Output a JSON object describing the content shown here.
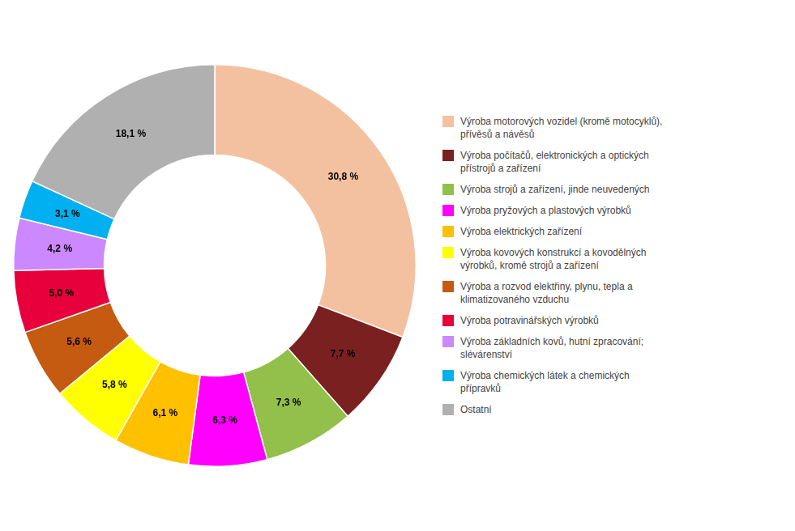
{
  "chart_data": {
    "type": "doughnut",
    "categories": [
      "Výroba motorových vozidel (kromě motocyklů),\npřívěsů a návěsů",
      "Výroba počítačů, elektronických a optických\npřístrojů a zařízení",
      "Výroba strojů a zařízení, jinde neuvedených",
      "Výroba pryžových a plastových výrobků",
      "Výroba elektrických zařízení",
      "Výroba kovových konstrukcí a kovodělných\nvýrobků, kromě strojů a zařízení",
      "Výroba a rozvod elektřiny, plynu, tepla a\nklimatizovaného vzduchu",
      "Výroba potravinářských výrobků",
      "Výroba základních kovů, hutní zpracování;\nslévárenství",
      "Výroba chemických látek a chemických\npřípravků",
      "Ostatní"
    ],
    "values": [
      30.8,
      7.7,
      7.3,
      6.3,
      6.1,
      5.8,
      5.6,
      5.0,
      4.2,
      3.1,
      18.1
    ],
    "value_labels": [
      "30,8 %",
      "7,7 %",
      "7,3 %",
      "6,3 %",
      "6,1 %",
      "5,8 %",
      "5,6 %",
      "5,0 %",
      "4,2 %",
      "3,1 %",
      "18,1 %"
    ],
    "colors": [
      "#F4C1A0",
      "#7B2020",
      "#92C04A",
      "#FF00FF",
      "#FFC000",
      "#FFFF00",
      "#C55A11",
      "#E8003D",
      "#CC88FF",
      "#00B0F0",
      "#B0B0B0"
    ],
    "data_labels": true,
    "legend": "right"
  }
}
